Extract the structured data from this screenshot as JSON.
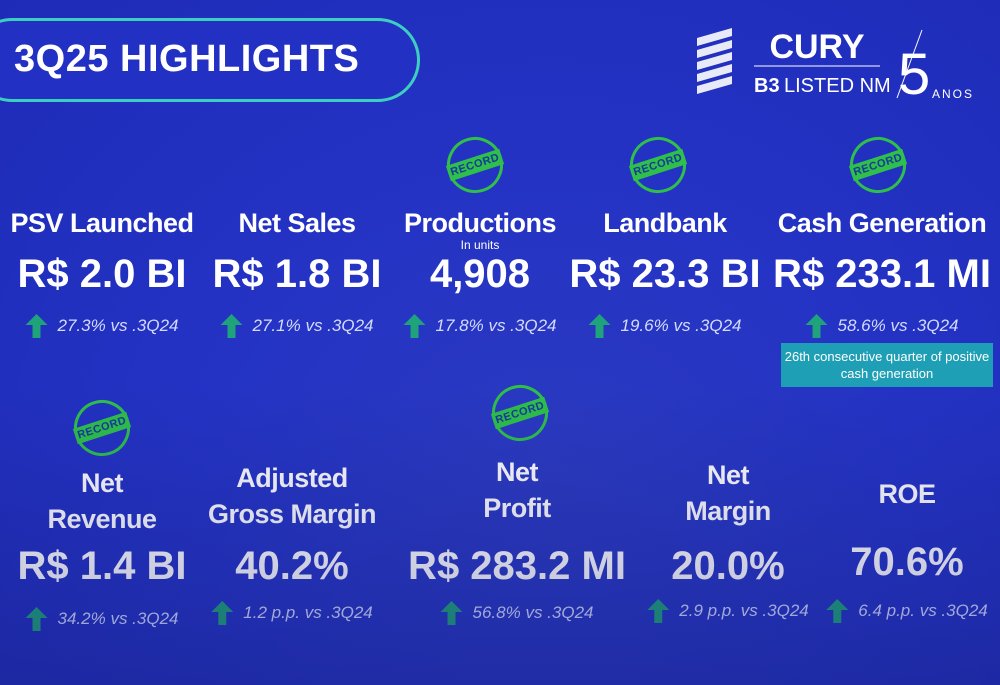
{
  "header": {
    "title": "3Q25 HIGHLIGHTS"
  },
  "logo": {
    "brand": "CURY",
    "listing_bold": "B3",
    "listing": "LISTED NM",
    "years": "5",
    "years_label": "ANOS"
  },
  "record_badge": "RECORD",
  "metrics": [
    {
      "label_lines": [
        "PSV Launched"
      ],
      "value": "R$ 2.0 BI",
      "change": "27.3% vs .3Q24",
      "record": false
    },
    {
      "label_lines": [
        "Net Sales"
      ],
      "value": "R$ 1.8 BI",
      "change": "27.1% vs .3Q24",
      "record": false
    },
    {
      "label_lines": [
        "Productions"
      ],
      "sublabel": "In units",
      "value": "4,908",
      "change": "17.8% vs .3Q24",
      "record": true
    },
    {
      "label_lines": [
        "Landbank"
      ],
      "value": "R$ 23.3 BI",
      "change": "19.6% vs .3Q24",
      "record": true
    },
    {
      "label_lines": [
        "Cash Generation"
      ],
      "value": "R$ 233.1 MI",
      "change": "58.6% vs .3Q24",
      "record": true,
      "note": "26th consecutive quarter of positive cash generation"
    },
    {
      "label_lines": [
        "Net",
        "Revenue"
      ],
      "value": "R$ 1.4 BI",
      "change": "34.2% vs .3Q24",
      "record": true
    },
    {
      "label_lines": [
        "Adjusted",
        "Gross Margin"
      ],
      "value": "40.2%",
      "change": "1.2 p.p. vs .3Q24",
      "record": false
    },
    {
      "label_lines": [
        "Net",
        "Profit"
      ],
      "value": "R$ 283.2 MI",
      "change": "56.8% vs .3Q24",
      "record": true
    },
    {
      "label_lines": [
        "Net",
        "Margin"
      ],
      "value": "20.0%",
      "change": "2.9 p.p. vs .3Q24",
      "record": false
    },
    {
      "label_lines": [
        "ROE"
      ],
      "value": "70.6%",
      "change": "6.4 p.p. vs .3Q24",
      "record": false
    }
  ]
}
